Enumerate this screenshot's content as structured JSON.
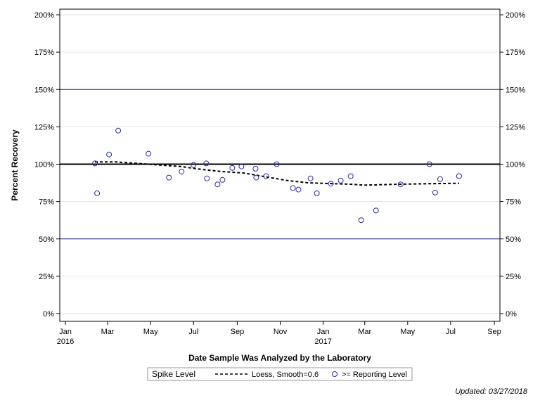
{
  "chart_data": {
    "type": "scatter",
    "xlabel": "Date Sample Was Analyzed by the Laboratory",
    "ylabel": "Percent Recovery",
    "xlim": [
      "2016-01-01",
      "2017-09-01"
    ],
    "ylim": [
      0,
      200
    ],
    "x_ticks": [
      {
        "date": "2016-01-01",
        "label": "Jan",
        "year": "2016"
      },
      {
        "date": "2016-03-01",
        "label": "Mar",
        "year": ""
      },
      {
        "date": "2016-05-01",
        "label": "May",
        "year": ""
      },
      {
        "date": "2016-07-01",
        "label": "Jul",
        "year": ""
      },
      {
        "date": "2016-09-01",
        "label": "Sep",
        "year": ""
      },
      {
        "date": "2016-11-01",
        "label": "Nov",
        "year": ""
      },
      {
        "date": "2017-01-01",
        "label": "Jan",
        "year": "2017"
      },
      {
        "date": "2017-03-01",
        "label": "Mar",
        "year": ""
      },
      {
        "date": "2017-05-01",
        "label": "May",
        "year": ""
      },
      {
        "date": "2017-07-01",
        "label": "Jul",
        "year": ""
      },
      {
        "date": "2017-09-01",
        "label": "Sep",
        "year": ""
      }
    ],
    "y_ticks": [
      {
        "value": 0,
        "label": "0%"
      },
      {
        "value": 25,
        "label": "25%"
      },
      {
        "value": 50,
        "label": "50%"
      },
      {
        "value": 75,
        "label": "75%"
      },
      {
        "value": 100,
        "label": "100%"
      },
      {
        "value": 125,
        "label": "125%"
      },
      {
        "value": 150,
        "label": "150%"
      },
      {
        "value": 175,
        "label": "175%"
      },
      {
        "value": 200,
        "label": "200%"
      }
    ],
    "reference_lines": [
      {
        "value": 100,
        "color": "#000000",
        "style": "thick"
      },
      {
        "value": 150,
        "color": "#1f1f8f",
        "style": "thin"
      },
      {
        "value": 50,
        "color": "#1f1f8f",
        "style": "thin"
      }
    ],
    "grid": true,
    "series": [
      {
        "name": ">= Reporting Level",
        "type": "scatter",
        "color": "#2a2aa0",
        "points": [
          {
            "x": "2016-02-12",
            "y": 100.5
          },
          {
            "x": "2016-02-15",
            "y": 80.5
          },
          {
            "x": "2016-03-03",
            "y": 106.5
          },
          {
            "x": "2016-03-16",
            "y": 122.5
          },
          {
            "x": "2016-04-28",
            "y": 107
          },
          {
            "x": "2016-05-27",
            "y": 91
          },
          {
            "x": "2016-06-14",
            "y": 95
          },
          {
            "x": "2016-07-01",
            "y": 99.5
          },
          {
            "x": "2016-07-19",
            "y": 100.5
          },
          {
            "x": "2016-07-20",
            "y": 90.5
          },
          {
            "x": "2016-08-04",
            "y": 86.5
          },
          {
            "x": "2016-08-11",
            "y": 89.5
          },
          {
            "x": "2016-08-25",
            "y": 97.5
          },
          {
            "x": "2016-09-07",
            "y": 98.5
          },
          {
            "x": "2016-09-27",
            "y": 97
          },
          {
            "x": "2016-09-28",
            "y": 91
          },
          {
            "x": "2016-10-12",
            "y": 92
          },
          {
            "x": "2016-10-27",
            "y": 100
          },
          {
            "x": "2016-11-19",
            "y": 84
          },
          {
            "x": "2016-11-27",
            "y": 83
          },
          {
            "x": "2016-12-14",
            "y": 90.5
          },
          {
            "x": "2016-12-23",
            "y": 80.5
          },
          {
            "x": "2017-01-12",
            "y": 87
          },
          {
            "x": "2017-01-26",
            "y": 89
          },
          {
            "x": "2017-02-09",
            "y": 92
          },
          {
            "x": "2017-02-24",
            "y": 62.5
          },
          {
            "x": "2017-03-17",
            "y": 69
          },
          {
            "x": "2017-04-21",
            "y": 86.5
          },
          {
            "x": "2017-06-01",
            "y": 100
          },
          {
            "x": "2017-06-09",
            "y": 81
          },
          {
            "x": "2017-06-16",
            "y": 90
          },
          {
            "x": "2017-07-13",
            "y": 92
          }
        ]
      },
      {
        "name": "Loess, Smooth=0.6",
        "type": "line",
        "style": "dashed",
        "color": "#000000",
        "points": [
          {
            "x": "2016-02-12",
            "y": 101.5
          },
          {
            "x": "2016-03-12",
            "y": 101.5
          },
          {
            "x": "2016-04-12",
            "y": 100.5
          },
          {
            "x": "2016-05-12",
            "y": 99.5
          },
          {
            "x": "2016-06-12",
            "y": 98.5
          },
          {
            "x": "2016-07-12",
            "y": 96.5
          },
          {
            "x": "2016-08-12",
            "y": 95
          },
          {
            "x": "2016-09-12",
            "y": 94
          },
          {
            "x": "2016-10-12",
            "y": 91.5
          },
          {
            "x": "2016-11-12",
            "y": 89
          },
          {
            "x": "2016-12-12",
            "y": 87.5
          },
          {
            "x": "2017-01-12",
            "y": 87
          },
          {
            "x": "2017-02-12",
            "y": 86.5
          },
          {
            "x": "2017-03-01",
            "y": 86
          },
          {
            "x": "2017-04-12",
            "y": 86.5
          },
          {
            "x": "2017-05-12",
            "y": 86.8
          },
          {
            "x": "2017-06-12",
            "y": 87
          },
          {
            "x": "2017-07-13",
            "y": 87.2
          }
        ]
      }
    ],
    "legend": {
      "title": "Spike Level",
      "placement": "bottom",
      "entries": [
        {
          "label": "Loess, Smooth=0.6",
          "symbol": "dashed-line"
        },
        {
          "label": ">= Reporting Level",
          "symbol": "circle"
        }
      ]
    },
    "footnote": "Updated: 03/27/2018"
  }
}
